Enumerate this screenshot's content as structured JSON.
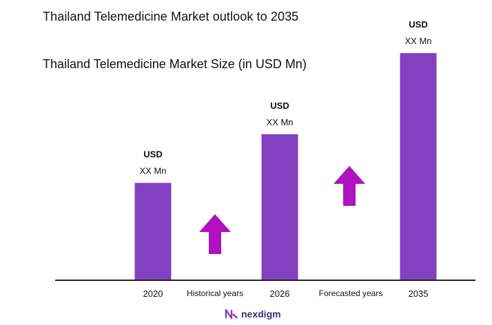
{
  "header": {
    "title": "Thailand Telemedicine Market outlook to 2035",
    "subtitle": "Thailand Telemedicine Market Size (in USD Mn)"
  },
  "brand": {
    "name": "nexdigm"
  },
  "colors": {
    "bar": "#8341c2",
    "arrow": "#b012c2",
    "axis": "#222222"
  },
  "chart_data": {
    "type": "bar",
    "title": "Thailand Telemedicine Market Size (in USD Mn)",
    "categories": [
      "2020",
      "2026",
      "2035"
    ],
    "values": [
      30,
      45,
      70
    ],
    "value_labels": [
      {
        "line1": "USD",
        "line2": "XX Mn"
      },
      {
        "line1": "USD",
        "line2": "XX Mn"
      },
      {
        "line1": "USD",
        "line2": "XX Mn"
      }
    ],
    "period_labels": [
      "Historical years",
      "Forecasted years"
    ],
    "ylim": [
      0,
      80
    ],
    "xlabel": "",
    "ylabel": "",
    "grid": false
  }
}
